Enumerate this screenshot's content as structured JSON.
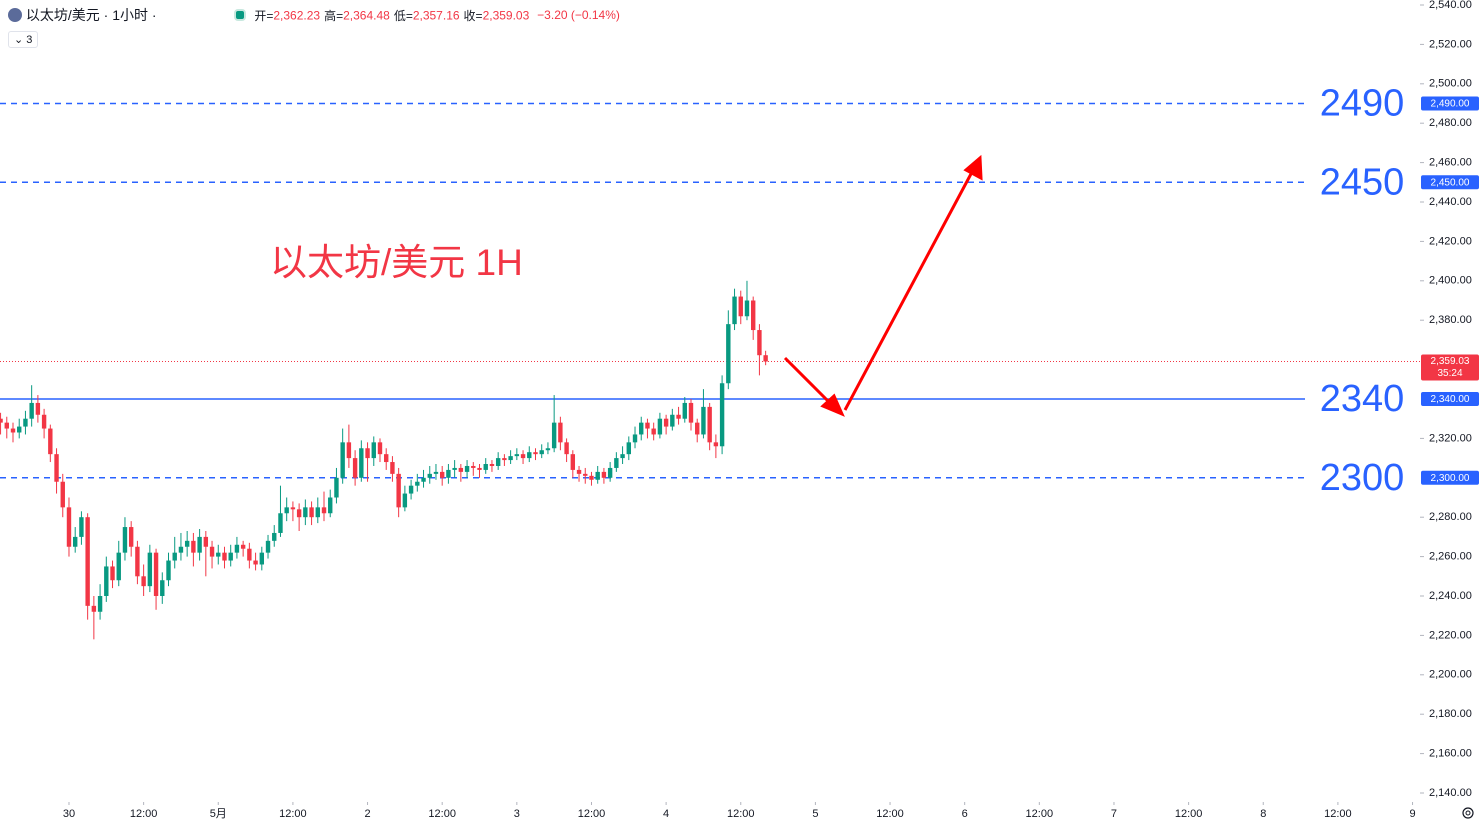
{
  "chart_data": {
    "type": "candlestick",
    "header": {
      "symbol": "以太坊/美元 · 1小时 ·",
      "fields": [
        {
          "label": "开=",
          "value": "2,362.23"
        },
        {
          "label": "高=",
          "value": "2,364.48"
        },
        {
          "label": "低=",
          "value": "2,357.16"
        },
        {
          "label": "收=",
          "value": "2,359.03"
        }
      ],
      "change": "−3.20 (−0.14%)",
      "indicators": "3"
    },
    "annotation": "以太坊/美元 1H",
    "up_color": "#089981",
    "down_color": "#f23645",
    "ylim": [
      2140,
      2540
    ],
    "yticks": [
      {
        "value": 2540,
        "label": "2,540.00"
      },
      {
        "value": 2520,
        "label": "2,520.00"
      },
      {
        "value": 2500,
        "label": "2,500.00"
      },
      {
        "value": 2480,
        "label": "2,480.00"
      },
      {
        "value": 2460,
        "label": "2,460.00"
      },
      {
        "value": 2440,
        "label": "2,440.00"
      },
      {
        "value": 2420,
        "label": "2,420.00"
      },
      {
        "value": 2400,
        "label": "2,400.00"
      },
      {
        "value": 2380,
        "label": "2,380.00"
      },
      {
        "value": 2320,
        "label": "2,320.00"
      },
      {
        "value": 2280,
        "label": "2,280.00"
      },
      {
        "value": 2260,
        "label": "2,260.00"
      },
      {
        "value": 2240,
        "label": "2,240.00"
      },
      {
        "value": 2220,
        "label": "2,220.00"
      },
      {
        "value": 2200,
        "label": "2,200.00"
      },
      {
        "value": 2180,
        "label": "2,180.00"
      },
      {
        "value": 2160,
        "label": "2,160.00"
      },
      {
        "value": 2140,
        "label": "2,140.00"
      }
    ],
    "xlim": [
      -0.09,
      228.2
    ],
    "xticks": [
      {
        "value": 11,
        "label": "30"
      },
      {
        "value": 23,
        "label": "12:00"
      },
      {
        "value": 35,
        "label": "5月"
      },
      {
        "value": 47,
        "label": "12:00"
      },
      {
        "value": 59,
        "label": "2"
      },
      {
        "value": 71,
        "label": "12:00"
      },
      {
        "value": 83,
        "label": "3"
      },
      {
        "value": 95,
        "label": "12:00"
      },
      {
        "value": 107,
        "label": "4"
      },
      {
        "value": 119,
        "label": "12:00"
      },
      {
        "value": 131,
        "label": "5"
      },
      {
        "value": 143,
        "label": "12:00"
      },
      {
        "value": 155,
        "label": "6"
      },
      {
        "value": 167,
        "label": "12:00"
      },
      {
        "value": 179,
        "label": "7"
      },
      {
        "value": 191,
        "label": "12:00"
      },
      {
        "value": 203,
        "label": "8"
      },
      {
        "value": 215,
        "label": "12:00"
      },
      {
        "value": 227,
        "label": "9"
      }
    ],
    "levels": [
      {
        "value": 2490,
        "tag": "2,490.00",
        "style": "dashed"
      },
      {
        "value": 2450,
        "tag": "2,450.00",
        "style": "dashed"
      },
      {
        "value": 2340,
        "tag": "2,340.00",
        "style": "solid"
      },
      {
        "value": 2300,
        "tag": "2,300.00",
        "style": "dashed"
      }
    ],
    "level_color": "#2962ff",
    "last_price": {
      "value": 2359.03,
      "label": "2,359.03",
      "timer": "35:24"
    },
    "series": [
      {
        "name": "以太坊/美元",
        "ohlc": [
          [
            2330,
            2333,
            2322,
            2328
          ],
          [
            2328,
            2331,
            2320,
            2325
          ],
          [
            2325,
            2328,
            2318,
            2323
          ],
          [
            2323,
            2330,
            2320,
            2326
          ],
          [
            2326,
            2334,
            2322,
            2330
          ],
          [
            2330,
            2347,
            2326,
            2338
          ],
          [
            2338,
            2342,
            2328,
            2332
          ],
          [
            2332,
            2335,
            2320,
            2325
          ],
          [
            2325,
            2327,
            2308,
            2312
          ],
          [
            2312,
            2315,
            2292,
            2298
          ],
          [
            2298,
            2302,
            2280,
            2285
          ],
          [
            2285,
            2290,
            2260,
            2265
          ],
          [
            2265,
            2275,
            2262,
            2270
          ],
          [
            2270,
            2283,
            2266,
            2280
          ],
          [
            2280,
            2282,
            2228,
            2235
          ],
          [
            2235,
            2240,
            2218,
            2232
          ],
          [
            2232,
            2246,
            2228,
            2240
          ],
          [
            2240,
            2260,
            2237,
            2255
          ],
          [
            2255,
            2258,
            2244,
            2248
          ],
          [
            2248,
            2268,
            2245,
            2262
          ],
          [
            2262,
            2280,
            2258,
            2275
          ],
          [
            2275,
            2278,
            2260,
            2265
          ],
          [
            2265,
            2268,
            2246,
            2250
          ],
          [
            2250,
            2256,
            2240,
            2245
          ],
          [
            2245,
            2266,
            2242,
            2262
          ],
          [
            2262,
            2264,
            2233,
            2240
          ],
          [
            2240,
            2252,
            2236,
            2248
          ],
          [
            2248,
            2262,
            2245,
            2258
          ],
          [
            2258,
            2270,
            2254,
            2262
          ],
          [
            2262,
            2272,
            2258,
            2265
          ],
          [
            2265,
            2273,
            2260,
            2268
          ],
          [
            2268,
            2272,
            2255,
            2262
          ],
          [
            2262,
            2274,
            2258,
            2270
          ],
          [
            2270,
            2273,
            2250,
            2265
          ],
          [
            2265,
            2268,
            2254,
            2260
          ],
          [
            2260,
            2266,
            2256,
            2262
          ],
          [
            2262,
            2265,
            2254,
            2258
          ],
          [
            2258,
            2266,
            2255,
            2262
          ],
          [
            2262,
            2270,
            2259,
            2266
          ],
          [
            2266,
            2268,
            2260,
            2264
          ],
          [
            2264,
            2267,
            2254,
            2258
          ],
          [
            2258,
            2262,
            2253,
            2256
          ],
          [
            2256,
            2265,
            2253,
            2262
          ],
          [
            2262,
            2271,
            2259,
            2268
          ],
          [
            2268,
            2276,
            2265,
            2272
          ],
          [
            2272,
            2296,
            2270,
            2282
          ],
          [
            2282,
            2290,
            2278,
            2285
          ],
          [
            2285,
            2288,
            2278,
            2284
          ],
          [
            2284,
            2287,
            2273,
            2280
          ],
          [
            2280,
            2289,
            2276,
            2285
          ],
          [
            2285,
            2288,
            2276,
            2280
          ],
          [
            2280,
            2290,
            2277,
            2285
          ],
          [
            2285,
            2293,
            2278,
            2282
          ],
          [
            2282,
            2294,
            2280,
            2290
          ],
          [
            2290,
            2305,
            2287,
            2300
          ],
          [
            2300,
            2325,
            2297,
            2318
          ],
          [
            2318,
            2327,
            2305,
            2310
          ],
          [
            2310,
            2314,
            2296,
            2300
          ],
          [
            2300,
            2319,
            2298,
            2315
          ],
          [
            2315,
            2318,
            2298,
            2310
          ],
          [
            2310,
            2321,
            2306,
            2318
          ],
          [
            2318,
            2320,
            2308,
            2312
          ],
          [
            2312,
            2315,
            2304,
            2308
          ],
          [
            2308,
            2311,
            2298,
            2302
          ],
          [
            2302,
            2305,
            2280,
            2285
          ],
          [
            2285,
            2296,
            2283,
            2292
          ],
          [
            2292,
            2299,
            2289,
            2296
          ],
          [
            2296,
            2302,
            2293,
            2298
          ],
          [
            2298,
            2304,
            2295,
            2300
          ],
          [
            2300,
            2306,
            2297,
            2302
          ],
          [
            2302,
            2307,
            2299,
            2303
          ],
          [
            2303,
            2306,
            2296,
            2300
          ],
          [
            2300,
            2307,
            2297,
            2304
          ],
          [
            2304,
            2309,
            2300,
            2305
          ],
          [
            2305,
            2307,
            2298,
            2303
          ],
          [
            2303,
            2309,
            2300,
            2306
          ],
          [
            2306,
            2308,
            2301,
            2305
          ],
          [
            2305,
            2307,
            2300,
            2304
          ],
          [
            2304,
            2310,
            2302,
            2307
          ],
          [
            2307,
            2309,
            2303,
            2306
          ],
          [
            2306,
            2313,
            2304,
            2310
          ],
          [
            2310,
            2312,
            2306,
            2309
          ],
          [
            2309,
            2314,
            2307,
            2311
          ],
          [
            2311,
            2315,
            2309,
            2312
          ],
          [
            2312,
            2314,
            2307,
            2310
          ],
          [
            2310,
            2316,
            2308,
            2313
          ],
          [
            2313,
            2315,
            2309,
            2312
          ],
          [
            2312,
            2317,
            2310,
            2314
          ],
          [
            2314,
            2318,
            2312,
            2315
          ],
          [
            2315,
            2342,
            2313,
            2328
          ],
          [
            2328,
            2331,
            2314,
            2318
          ],
          [
            2318,
            2320,
            2308,
            2312
          ],
          [
            2312,
            2314,
            2300,
            2304
          ],
          [
            2304,
            2306,
            2298,
            2302
          ],
          [
            2302,
            2305,
            2297,
            2301
          ],
          [
            2301,
            2303,
            2296,
            2299
          ],
          [
            2299,
            2306,
            2297,
            2303
          ],
          [
            2303,
            2305,
            2297,
            2300
          ],
          [
            2300,
            2308,
            2298,
            2305
          ],
          [
            2305,
            2313,
            2303,
            2310
          ],
          [
            2310,
            2316,
            2307,
            2312
          ],
          [
            2312,
            2321,
            2309,
            2318
          ],
          [
            2318,
            2326,
            2315,
            2322
          ],
          [
            2322,
            2331,
            2319,
            2328
          ],
          [
            2328,
            2330,
            2320,
            2325
          ],
          [
            2325,
            2328,
            2319,
            2322
          ],
          [
            2322,
            2333,
            2320,
            2330
          ],
          [
            2330,
            2332,
            2322,
            2326
          ],
          [
            2326,
            2335,
            2324,
            2332
          ],
          [
            2332,
            2336,
            2327,
            2330
          ],
          [
            2330,
            2341,
            2328,
            2338
          ],
          [
            2338,
            2340,
            2324,
            2328
          ],
          [
            2328,
            2330,
            2318,
            2322
          ],
          [
            2322,
            2345,
            2320,
            2336
          ],
          [
            2336,
            2338,
            2314,
            2318
          ],
          [
            2318,
            2322,
            2310,
            2316
          ],
          [
            2316,
            2352,
            2312,
            2348
          ],
          [
            2348,
            2385,
            2345,
            2378
          ],
          [
            2378,
            2396,
            2375,
            2392
          ],
          [
            2392,
            2395,
            2378,
            2382
          ],
          [
            2382,
            2400,
            2380,
            2390
          ],
          [
            2390,
            2392,
            2370,
            2375
          ],
          [
            2375,
            2378,
            2352,
            2362.23
          ],
          [
            2362.23,
            2364.48,
            2357.16,
            2359.03
          ]
        ]
      }
    ]
  }
}
